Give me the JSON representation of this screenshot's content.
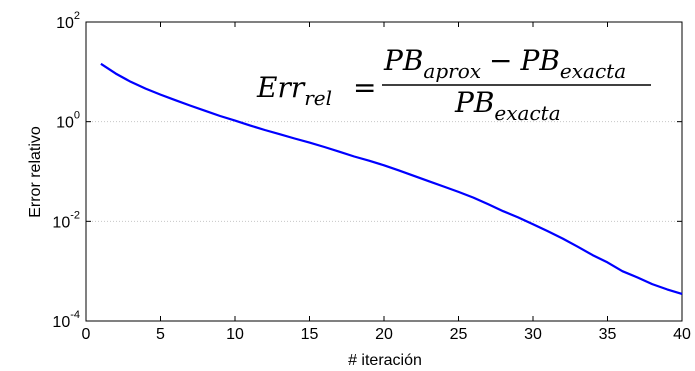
{
  "chart_data": {
    "type": "line",
    "xlabel": "# iteración",
    "ylabel": "Error relativo",
    "xlim": [
      0,
      40
    ],
    "ylim": [
      0.0001,
      100
    ],
    "yscale": "log",
    "x_ticks": [
      "0",
      "5",
      "10",
      "15",
      "20",
      "25",
      "30",
      "35",
      "40"
    ],
    "y_ticks": [
      {
        "value": 100,
        "base": "10",
        "exp": "2"
      },
      {
        "value": 1,
        "base": "10",
        "exp": "0"
      },
      {
        "value": 0.01,
        "base": "10",
        "exp": "-2"
      },
      {
        "value": 0.0001,
        "base": "10",
        "exp": "-4"
      }
    ],
    "grid": "horizontal dotted",
    "series": [
      {
        "color": "#0000ff",
        "x": [
          1,
          2,
          3,
          4,
          5,
          6,
          7,
          8,
          9,
          10,
          11,
          12,
          13,
          14,
          15,
          16,
          17,
          18,
          19,
          20,
          21,
          22,
          23,
          24,
          25,
          26,
          27,
          28,
          29,
          30,
          31,
          32,
          33,
          34,
          35,
          36,
          37,
          38,
          39,
          40
        ],
        "y": [
          14.5,
          9.2,
          6.3,
          4.6,
          3.5,
          2.7,
          2.1,
          1.65,
          1.3,
          1.05,
          0.84,
          0.68,
          0.56,
          0.46,
          0.38,
          0.31,
          0.25,
          0.2,
          0.165,
          0.133,
          0.105,
          0.082,
          0.064,
          0.05,
          0.039,
          0.03,
          0.022,
          0.016,
          0.012,
          0.0087,
          0.0063,
          0.0045,
          0.0031,
          0.0021,
          0.0015,
          0.001,
          0.00075,
          0.00055,
          0.00043,
          0.00035
        ]
      }
    ],
    "annotation": {
      "lhs": "Err",
      "lhs_sub": "rel",
      "equals": "=",
      "num_a": "PB",
      "num_a_sub": "aprox",
      "minus": "−",
      "num_b": "PB",
      "num_b_sub": "exacta",
      "den": "PB",
      "den_sub": "exacta"
    }
  }
}
